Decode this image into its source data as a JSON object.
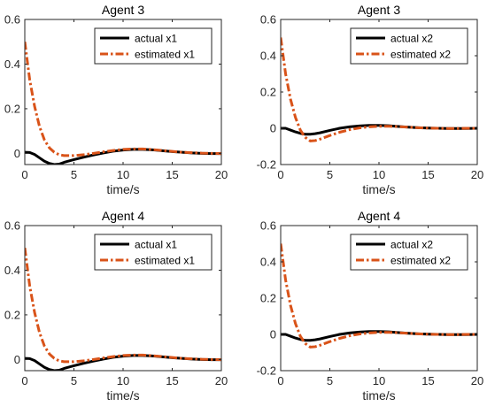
{
  "colors": {
    "actual": "#000000",
    "estimated": "#D95319"
  },
  "chart_data": [
    {
      "type": "line",
      "title": "Agent 3",
      "xlabel": "time/s",
      "ylabel": "",
      "xlim": [
        0,
        20
      ],
      "ylim": [
        -0.05,
        0.6
      ],
      "xticks": [
        0,
        5,
        10,
        15,
        20
      ],
      "yticks": [
        0,
        0.2,
        0.4,
        0.6
      ],
      "grid": false,
      "legend": "top-right",
      "x": [
        0,
        0.5,
        1,
        1.5,
        2,
        2.5,
        3,
        3.5,
        4,
        5,
        6,
        7,
        8,
        9,
        10,
        11,
        12,
        13,
        14,
        15,
        16,
        17,
        18,
        19,
        20
      ],
      "series": [
        {
          "name": "actual x1",
          "style": "solid",
          "color": "#000000",
          "values": [
            0.005,
            0.004,
            -0.005,
            -0.02,
            -0.035,
            -0.045,
            -0.05,
            -0.048,
            -0.04,
            -0.028,
            -0.017,
            -0.007,
            0.002,
            0.01,
            0.015,
            0.018,
            0.018,
            0.016,
            0.012,
            0.008,
            0.005,
            0.002,
            0.0,
            -0.001,
            -0.001
          ]
        },
        {
          "name": "estimated x1",
          "style": "dashdot",
          "color": "#D95319",
          "values": [
            0.5,
            0.33,
            0.21,
            0.12,
            0.06,
            0.025,
            0.005,
            -0.006,
            -0.01,
            -0.01,
            -0.006,
            0.0,
            0.007,
            0.013,
            0.018,
            0.02,
            0.02,
            0.017,
            0.013,
            0.009,
            0.005,
            0.003,
            0.001,
            0.0,
            -0.001
          ]
        }
      ]
    },
    {
      "type": "line",
      "title": "Agent 3",
      "xlabel": "time/s",
      "ylabel": "",
      "xlim": [
        0,
        20
      ],
      "ylim": [
        -0.2,
        0.6
      ],
      "xticks": [
        0,
        5,
        10,
        15,
        20
      ],
      "yticks": [
        -0.2,
        0,
        0.2,
        0.4,
        0.6
      ],
      "grid": false,
      "legend": "top-right",
      "x": [
        0,
        0.5,
        1,
        1.5,
        2,
        2.5,
        3,
        3.5,
        4,
        5,
        6,
        7,
        8,
        9,
        10,
        11,
        12,
        13,
        14,
        15,
        16,
        17,
        18,
        19,
        20
      ],
      "series": [
        {
          "name": "actual x2",
          "style": "solid",
          "color": "#000000",
          "values": [
            0.0,
            0.0,
            -0.01,
            -0.02,
            -0.028,
            -0.033,
            -0.033,
            -0.03,
            -0.025,
            -0.012,
            0.0,
            0.008,
            0.013,
            0.016,
            0.016,
            0.014,
            0.01,
            0.006,
            0.003,
            0.001,
            0.0,
            -0.001,
            -0.001,
            -0.001,
            0.0
          ]
        },
        {
          "name": "estimated x2",
          "style": "dashdot",
          "color": "#D95319",
          "values": [
            0.5,
            0.3,
            0.16,
            0.06,
            -0.01,
            -0.05,
            -0.07,
            -0.068,
            -0.06,
            -0.04,
            -0.022,
            -0.008,
            0.002,
            0.008,
            0.011,
            0.011,
            0.009,
            0.006,
            0.003,
            0.001,
            0.0,
            -0.001,
            -0.001,
            0.0,
            0.0
          ]
        }
      ]
    },
    {
      "type": "line",
      "title": "Agent 4",
      "xlabel": "time/s",
      "ylabel": "",
      "xlim": [
        0,
        20
      ],
      "ylim": [
        -0.05,
        0.6
      ],
      "xticks": [
        0,
        5,
        10,
        15,
        20
      ],
      "yticks": [
        0,
        0.2,
        0.4,
        0.6
      ],
      "grid": false,
      "legend": "top-right",
      "x": [
        0,
        0.5,
        1,
        1.5,
        2,
        2.5,
        3,
        3.5,
        4,
        5,
        6,
        7,
        8,
        9,
        10,
        11,
        12,
        13,
        14,
        15,
        16,
        17,
        18,
        19,
        20
      ],
      "series": [
        {
          "name": "actual x1",
          "style": "solid",
          "color": "#000000",
          "values": [
            0.005,
            0.004,
            -0.005,
            -0.02,
            -0.035,
            -0.045,
            -0.05,
            -0.048,
            -0.04,
            -0.028,
            -0.017,
            -0.007,
            0.002,
            0.01,
            0.015,
            0.018,
            0.018,
            0.016,
            0.012,
            0.008,
            0.005,
            0.002,
            0.0,
            -0.001,
            -0.001
          ]
        },
        {
          "name": "estimated x1",
          "style": "dashdot",
          "color": "#D95319",
          "values": [
            0.5,
            0.33,
            0.21,
            0.12,
            0.06,
            0.025,
            0.005,
            -0.006,
            -0.01,
            -0.01,
            -0.006,
            0.0,
            0.007,
            0.013,
            0.018,
            0.02,
            0.02,
            0.017,
            0.013,
            0.009,
            0.005,
            0.003,
            0.001,
            0.0,
            -0.001
          ]
        }
      ]
    },
    {
      "type": "line",
      "title": "Agent 4",
      "xlabel": "time/s",
      "ylabel": "",
      "xlim": [
        0,
        20
      ],
      "ylim": [
        -0.2,
        0.6
      ],
      "xticks": [
        0,
        5,
        10,
        15,
        20
      ],
      "yticks": [
        -0.2,
        0,
        0.2,
        0.4,
        0.6
      ],
      "grid": false,
      "legend": "top-right",
      "x": [
        0,
        0.5,
        1,
        1.5,
        2,
        2.5,
        3,
        3.5,
        4,
        5,
        6,
        7,
        8,
        9,
        10,
        11,
        12,
        13,
        14,
        15,
        16,
        17,
        18,
        19,
        20
      ],
      "series": [
        {
          "name": "actual x2",
          "style": "solid",
          "color": "#000000",
          "values": [
            0.0,
            0.0,
            -0.01,
            -0.02,
            -0.028,
            -0.033,
            -0.033,
            -0.03,
            -0.025,
            -0.012,
            0.0,
            0.008,
            0.013,
            0.016,
            0.016,
            0.014,
            0.01,
            0.006,
            0.003,
            0.001,
            0.0,
            -0.001,
            -0.001,
            -0.001,
            0.0
          ]
        },
        {
          "name": "estimated x2",
          "style": "dashdot",
          "color": "#D95319",
          "values": [
            0.5,
            0.3,
            0.16,
            0.06,
            -0.01,
            -0.05,
            -0.07,
            -0.068,
            -0.06,
            -0.04,
            -0.022,
            -0.008,
            0.002,
            0.008,
            0.011,
            0.011,
            0.009,
            0.006,
            0.003,
            0.001,
            0.0,
            -0.001,
            -0.001,
            0.0,
            0.0
          ]
        }
      ]
    }
  ]
}
